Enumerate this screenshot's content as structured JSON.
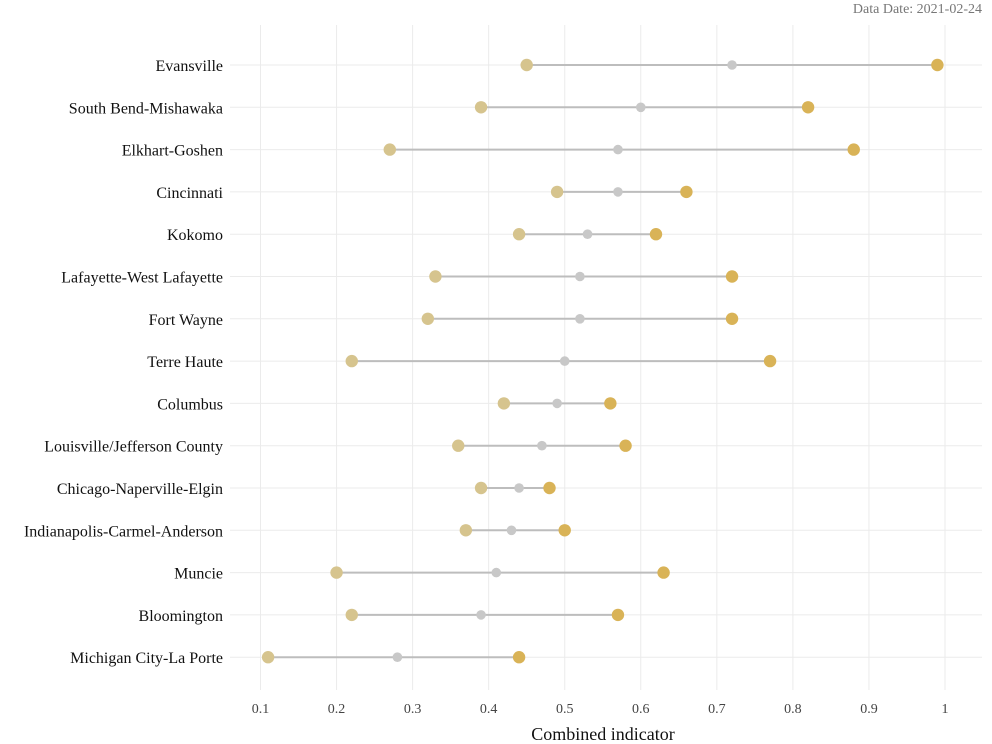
{
  "caption": "Data Date: 2021-02-24",
  "colors": {
    "low": "#d6c48e",
    "mid": "#c8c8c8",
    "high": "#d9b357",
    "line": "#bdbdbd",
    "grid": "#ebebeb"
  },
  "chart_data": {
    "type": "dumbbell",
    "orientation": "horizontal",
    "xlabel": "Combined indicator",
    "xlim": [
      0.07,
      1.05
    ],
    "xticks": [
      0.1,
      0.2,
      0.3,
      0.4,
      0.5,
      0.6,
      0.7,
      0.8,
      0.9,
      1
    ],
    "xtick_labels": [
      "0.1",
      "0.2",
      "0.3",
      "0.4",
      "0.5",
      "0.6",
      "0.7",
      "0.8",
      "0.9",
      "1"
    ],
    "grid": true,
    "legend": "none",
    "categories": [
      "Evansville",
      "South Bend-Mishawaka",
      "Elkhart-Goshen",
      "Cincinnati",
      "Kokomo",
      "Lafayette-West Lafayette",
      "Fort Wayne",
      "Terre Haute",
      "Columbus",
      "Louisville/Jefferson County",
      "Chicago-Naperville-Elgin",
      "Indianapolis-Carmel-Anderson",
      "Muncie",
      "Bloomington",
      "Michigan City-La Porte"
    ],
    "low": [
      0.45,
      0.39,
      0.27,
      0.49,
      0.44,
      0.33,
      0.32,
      0.22,
      0.42,
      0.36,
      0.39,
      0.37,
      0.2,
      0.22,
      0.11
    ],
    "mid": [
      0.72,
      0.6,
      0.57,
      0.57,
      0.53,
      0.52,
      0.52,
      0.5,
      0.49,
      0.47,
      0.44,
      0.43,
      0.41,
      0.39,
      0.28
    ],
    "high": [
      0.99,
      0.82,
      0.88,
      0.66,
      0.62,
      0.72,
      0.72,
      0.77,
      0.56,
      0.58,
      0.48,
      0.5,
      0.63,
      0.57,
      0.44
    ]
  }
}
